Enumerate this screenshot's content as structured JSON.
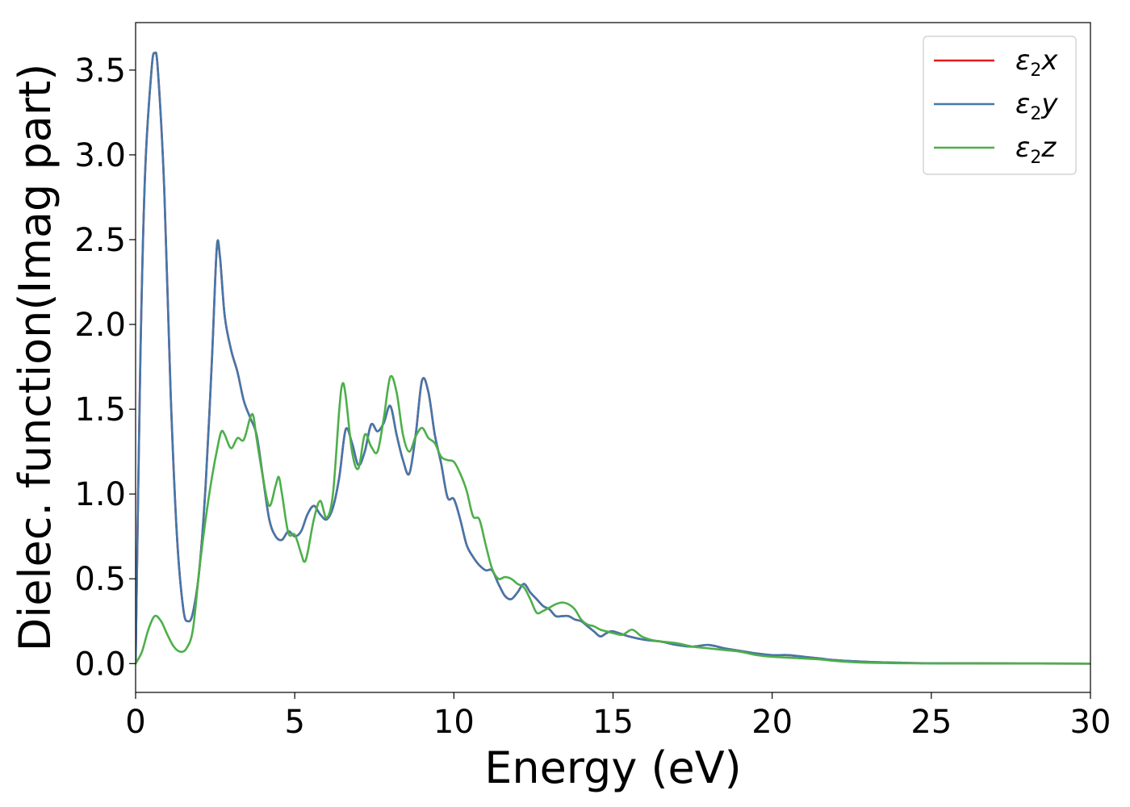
{
  "chart_data": {
    "type": "line",
    "title": "",
    "xlabel": "Energy (eV)",
    "ylabel": "Dielec. function(Imag part)",
    "xlim": [
      0,
      30
    ],
    "ylim": [
      -0.17,
      3.78
    ],
    "xticks": [
      "0",
      "5",
      "10",
      "15",
      "20",
      "25",
      "30"
    ],
    "yticks": [
      "0.0",
      "0.5",
      "1.0",
      "1.5",
      "2.0",
      "2.5",
      "3.0",
      "3.5"
    ],
    "grid": false,
    "legend_position": "top-right",
    "series": [
      {
        "name": "ε2x",
        "legend_base": "ε",
        "legend_sub": "2",
        "legend_tail": "x",
        "color": "#e41a1c",
        "points": [
          [
            0,
            0
          ],
          [
            0.15,
            1.8
          ],
          [
            0.3,
            2.9
          ],
          [
            0.5,
            3.5
          ],
          [
            0.6,
            3.6
          ],
          [
            0.7,
            3.5
          ],
          [
            0.9,
            2.8
          ],
          [
            1.1,
            1.6
          ],
          [
            1.3,
            0.75
          ],
          [
            1.5,
            0.32
          ],
          [
            1.65,
            0.25
          ],
          [
            1.8,
            0.3
          ],
          [
            2.0,
            0.55
          ],
          [
            2.2,
            1.05
          ],
          [
            2.4,
            1.8
          ],
          [
            2.55,
            2.45
          ],
          [
            2.65,
            2.4
          ],
          [
            2.8,
            2.05
          ],
          [
            3.0,
            1.85
          ],
          [
            3.2,
            1.72
          ],
          [
            3.4,
            1.55
          ],
          [
            3.6,
            1.45
          ],
          [
            3.8,
            1.35
          ],
          [
            4.0,
            1.1
          ],
          [
            4.2,
            0.85
          ],
          [
            4.4,
            0.75
          ],
          [
            4.6,
            0.73
          ],
          [
            4.8,
            0.78
          ],
          [
            5.0,
            0.75
          ],
          [
            5.2,
            0.78
          ],
          [
            5.4,
            0.88
          ],
          [
            5.6,
            0.93
          ],
          [
            5.8,
            0.88
          ],
          [
            6.0,
            0.85
          ],
          [
            6.2,
            0.92
          ],
          [
            6.4,
            1.1
          ],
          [
            6.6,
            1.38
          ],
          [
            6.8,
            1.3
          ],
          [
            7.0,
            1.17
          ],
          [
            7.2,
            1.25
          ],
          [
            7.4,
            1.41
          ],
          [
            7.6,
            1.37
          ],
          [
            7.8,
            1.42
          ],
          [
            8.0,
            1.52
          ],
          [
            8.2,
            1.35
          ],
          [
            8.4,
            1.2
          ],
          [
            8.6,
            1.12
          ],
          [
            8.8,
            1.35
          ],
          [
            9.0,
            1.67
          ],
          [
            9.2,
            1.6
          ],
          [
            9.4,
            1.35
          ],
          [
            9.6,
            1.18
          ],
          [
            9.8,
            0.98
          ],
          [
            10.0,
            0.97
          ],
          [
            10.2,
            0.85
          ],
          [
            10.4,
            0.7
          ],
          [
            10.6,
            0.63
          ],
          [
            10.8,
            0.58
          ],
          [
            11.0,
            0.55
          ],
          [
            11.2,
            0.55
          ],
          [
            11.4,
            0.47
          ],
          [
            11.6,
            0.4
          ],
          [
            11.8,
            0.38
          ],
          [
            12.0,
            0.42
          ],
          [
            12.2,
            0.47
          ],
          [
            12.4,
            0.42
          ],
          [
            12.6,
            0.38
          ],
          [
            12.8,
            0.34
          ],
          [
            13.0,
            0.32
          ],
          [
            13.2,
            0.28
          ],
          [
            13.4,
            0.28
          ],
          [
            13.6,
            0.28
          ],
          [
            13.8,
            0.26
          ],
          [
            14.0,
            0.25
          ],
          [
            14.2,
            0.22
          ],
          [
            14.4,
            0.19
          ],
          [
            14.6,
            0.16
          ],
          [
            14.8,
            0.18
          ],
          [
            15.0,
            0.19
          ],
          [
            15.5,
            0.16
          ],
          [
            16.0,
            0.14
          ],
          [
            16.5,
            0.13
          ],
          [
            17.0,
            0.11
          ],
          [
            17.5,
            0.1
          ],
          [
            18.0,
            0.11
          ],
          [
            18.5,
            0.09
          ],
          [
            19.0,
            0.075
          ],
          [
            19.5,
            0.06
          ],
          [
            20.0,
            0.05
          ],
          [
            20.5,
            0.05
          ],
          [
            21.0,
            0.04
          ],
          [
            21.5,
            0.03
          ],
          [
            22.0,
            0.02
          ],
          [
            23.0,
            0.01
          ],
          [
            24.0,
            0.005
          ],
          [
            25.0,
            0.002
          ],
          [
            27.0,
            0.001
          ],
          [
            30.0,
            0.0
          ]
        ]
      },
      {
        "name": "ε2y",
        "legend_base": "ε",
        "legend_sub": "2",
        "legend_tail": "y",
        "color": "#4477aa",
        "points": [
          [
            0,
            0
          ],
          [
            0.15,
            1.8
          ],
          [
            0.3,
            2.9
          ],
          [
            0.5,
            3.5
          ],
          [
            0.6,
            3.6
          ],
          [
            0.7,
            3.5
          ],
          [
            0.9,
            2.8
          ],
          [
            1.1,
            1.6
          ],
          [
            1.3,
            0.75
          ],
          [
            1.5,
            0.32
          ],
          [
            1.65,
            0.25
          ],
          [
            1.8,
            0.3
          ],
          [
            2.0,
            0.55
          ],
          [
            2.2,
            1.05
          ],
          [
            2.4,
            1.8
          ],
          [
            2.55,
            2.45
          ],
          [
            2.65,
            2.4
          ],
          [
            2.8,
            2.05
          ],
          [
            3.0,
            1.85
          ],
          [
            3.2,
            1.72
          ],
          [
            3.4,
            1.55
          ],
          [
            3.6,
            1.45
          ],
          [
            3.8,
            1.35
          ],
          [
            4.0,
            1.1
          ],
          [
            4.2,
            0.85
          ],
          [
            4.4,
            0.75
          ],
          [
            4.6,
            0.73
          ],
          [
            4.8,
            0.78
          ],
          [
            5.0,
            0.75
          ],
          [
            5.2,
            0.78
          ],
          [
            5.4,
            0.88
          ],
          [
            5.6,
            0.93
          ],
          [
            5.8,
            0.88
          ],
          [
            6.0,
            0.85
          ],
          [
            6.2,
            0.92
          ],
          [
            6.4,
            1.1
          ],
          [
            6.6,
            1.38
          ],
          [
            6.8,
            1.3
          ],
          [
            7.0,
            1.17
          ],
          [
            7.2,
            1.25
          ],
          [
            7.4,
            1.41
          ],
          [
            7.6,
            1.37
          ],
          [
            7.8,
            1.42
          ],
          [
            8.0,
            1.52
          ],
          [
            8.2,
            1.35
          ],
          [
            8.4,
            1.2
          ],
          [
            8.6,
            1.12
          ],
          [
            8.8,
            1.35
          ],
          [
            9.0,
            1.67
          ],
          [
            9.2,
            1.6
          ],
          [
            9.4,
            1.35
          ],
          [
            9.6,
            1.18
          ],
          [
            9.8,
            0.98
          ],
          [
            10.0,
            0.97
          ],
          [
            10.2,
            0.85
          ],
          [
            10.4,
            0.7
          ],
          [
            10.6,
            0.63
          ],
          [
            10.8,
            0.58
          ],
          [
            11.0,
            0.55
          ],
          [
            11.2,
            0.55
          ],
          [
            11.4,
            0.47
          ],
          [
            11.6,
            0.4
          ],
          [
            11.8,
            0.38
          ],
          [
            12.0,
            0.42
          ],
          [
            12.2,
            0.47
          ],
          [
            12.4,
            0.42
          ],
          [
            12.6,
            0.38
          ],
          [
            12.8,
            0.34
          ],
          [
            13.0,
            0.32
          ],
          [
            13.2,
            0.28
          ],
          [
            13.4,
            0.28
          ],
          [
            13.6,
            0.28
          ],
          [
            13.8,
            0.26
          ],
          [
            14.0,
            0.25
          ],
          [
            14.2,
            0.22
          ],
          [
            14.4,
            0.19
          ],
          [
            14.6,
            0.16
          ],
          [
            14.8,
            0.18
          ],
          [
            15.0,
            0.19
          ],
          [
            15.5,
            0.16
          ],
          [
            16.0,
            0.14
          ],
          [
            16.5,
            0.13
          ],
          [
            17.0,
            0.11
          ],
          [
            17.5,
            0.1
          ],
          [
            18.0,
            0.11
          ],
          [
            18.5,
            0.09
          ],
          [
            19.0,
            0.075
          ],
          [
            19.5,
            0.06
          ],
          [
            20.0,
            0.05
          ],
          [
            20.5,
            0.05
          ],
          [
            21.0,
            0.04
          ],
          [
            21.5,
            0.03
          ],
          [
            22.0,
            0.02
          ],
          [
            23.0,
            0.01
          ],
          [
            24.0,
            0.005
          ],
          [
            25.0,
            0.002
          ],
          [
            27.0,
            0.001
          ],
          [
            30.0,
            0.0
          ]
        ]
      },
      {
        "name": "ε2z",
        "legend_base": "ε",
        "legend_sub": "2",
        "legend_tail": "z",
        "color": "#4daf4a",
        "points": [
          [
            0,
            0
          ],
          [
            0.2,
            0.07
          ],
          [
            0.4,
            0.2
          ],
          [
            0.6,
            0.28
          ],
          [
            0.8,
            0.25
          ],
          [
            1.0,
            0.17
          ],
          [
            1.2,
            0.1
          ],
          [
            1.4,
            0.07
          ],
          [
            1.6,
            0.09
          ],
          [
            1.8,
            0.2
          ],
          [
            2.0,
            0.55
          ],
          [
            2.2,
            0.85
          ],
          [
            2.4,
            1.1
          ],
          [
            2.6,
            1.3
          ],
          [
            2.7,
            1.37
          ],
          [
            2.8,
            1.35
          ],
          [
            3.0,
            1.27
          ],
          [
            3.2,
            1.33
          ],
          [
            3.4,
            1.32
          ],
          [
            3.6,
            1.45
          ],
          [
            3.7,
            1.46
          ],
          [
            3.8,
            1.33
          ],
          [
            4.0,
            1.1
          ],
          [
            4.2,
            0.93
          ],
          [
            4.4,
            1.05
          ],
          [
            4.5,
            1.1
          ],
          [
            4.6,
            1.0
          ],
          [
            4.8,
            0.77
          ],
          [
            5.0,
            0.76
          ],
          [
            5.2,
            0.65
          ],
          [
            5.3,
            0.6
          ],
          [
            5.4,
            0.65
          ],
          [
            5.6,
            0.85
          ],
          [
            5.8,
            0.96
          ],
          [
            6.0,
            0.86
          ],
          [
            6.2,
            1.0
          ],
          [
            6.4,
            1.5
          ],
          [
            6.5,
            1.65
          ],
          [
            6.6,
            1.58
          ],
          [
            6.8,
            1.25
          ],
          [
            7.0,
            1.15
          ],
          [
            7.2,
            1.35
          ],
          [
            7.4,
            1.28
          ],
          [
            7.6,
            1.25
          ],
          [
            7.8,
            1.45
          ],
          [
            8.0,
            1.69
          ],
          [
            8.2,
            1.6
          ],
          [
            8.4,
            1.35
          ],
          [
            8.6,
            1.25
          ],
          [
            8.8,
            1.34
          ],
          [
            9.0,
            1.39
          ],
          [
            9.2,
            1.33
          ],
          [
            9.4,
            1.3
          ],
          [
            9.6,
            1.22
          ],
          [
            9.8,
            1.2
          ],
          [
            10.0,
            1.19
          ],
          [
            10.2,
            1.12
          ],
          [
            10.4,
            1.02
          ],
          [
            10.6,
            0.87
          ],
          [
            10.8,
            0.85
          ],
          [
            11.0,
            0.7
          ],
          [
            11.2,
            0.56
          ],
          [
            11.4,
            0.5
          ],
          [
            11.6,
            0.51
          ],
          [
            11.8,
            0.5
          ],
          [
            12.0,
            0.47
          ],
          [
            12.2,
            0.45
          ],
          [
            12.4,
            0.38
          ],
          [
            12.6,
            0.3
          ],
          [
            12.8,
            0.31
          ],
          [
            13.0,
            0.33
          ],
          [
            13.2,
            0.35
          ],
          [
            13.4,
            0.36
          ],
          [
            13.6,
            0.35
          ],
          [
            13.8,
            0.32
          ],
          [
            14.0,
            0.26
          ],
          [
            14.2,
            0.23
          ],
          [
            14.4,
            0.22
          ],
          [
            14.6,
            0.2
          ],
          [
            14.8,
            0.19
          ],
          [
            15.0,
            0.18
          ],
          [
            15.3,
            0.17
          ],
          [
            15.6,
            0.2
          ],
          [
            15.9,
            0.16
          ],
          [
            16.2,
            0.14
          ],
          [
            16.5,
            0.13
          ],
          [
            17.0,
            0.12
          ],
          [
            17.5,
            0.1
          ],
          [
            18.0,
            0.09
          ],
          [
            18.5,
            0.08
          ],
          [
            19.0,
            0.07
          ],
          [
            19.5,
            0.05
          ],
          [
            20.0,
            0.04
          ],
          [
            20.5,
            0.035
          ],
          [
            21.0,
            0.03
          ],
          [
            21.5,
            0.025
          ],
          [
            22.0,
            0.015
          ],
          [
            23.0,
            0.005
          ],
          [
            25.0,
            0.001
          ],
          [
            30.0,
            0.0
          ]
        ]
      }
    ]
  }
}
